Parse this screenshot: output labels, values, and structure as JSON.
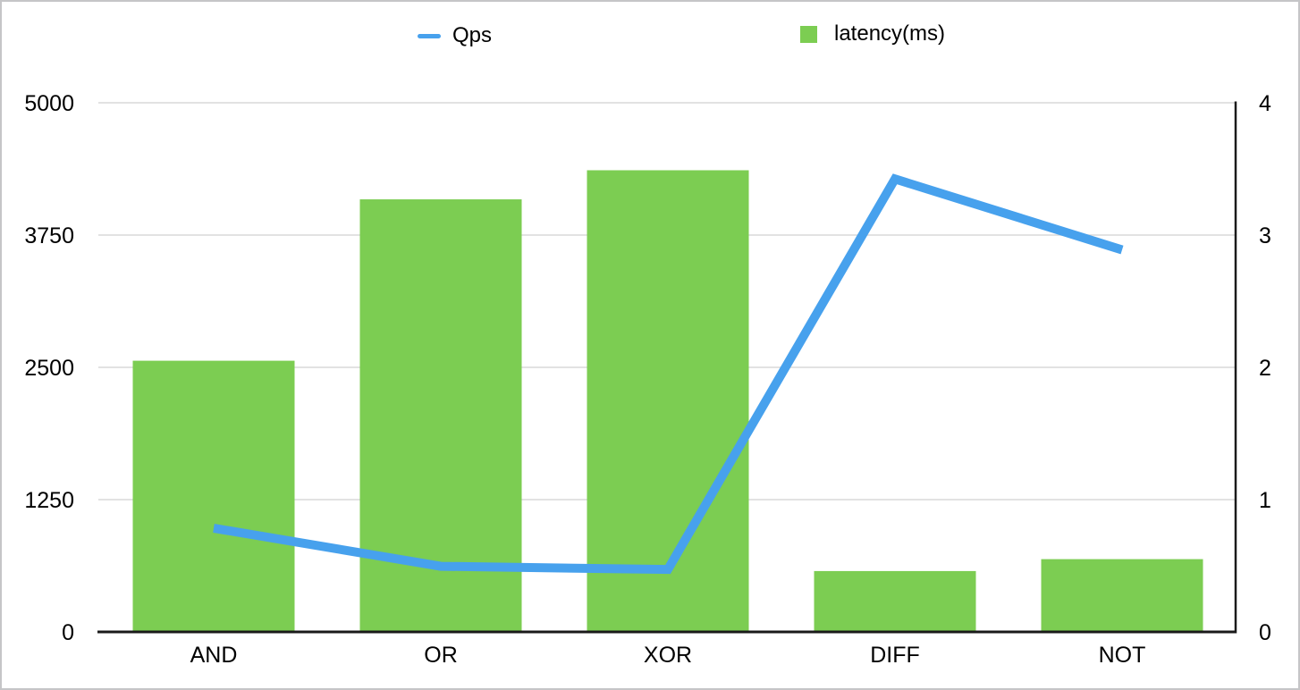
{
  "chart_data": {
    "type": "combo",
    "categories": [
      "AND",
      "OR",
      "XOR",
      "DIFF",
      "NOT"
    ],
    "series": [
      {
        "name": "Qps",
        "type": "line",
        "axis": "left",
        "color": "#47a1ed",
        "values": [
          980,
          620,
          590,
          4280,
          3610
        ]
      },
      {
        "name": "latency(ms)",
        "type": "bar",
        "axis": "right",
        "color": "#7ccd52",
        "values": [
          2.05,
          3.27,
          3.49,
          0.46,
          0.55
        ]
      }
    ],
    "left_axis": {
      "min": 0,
      "max": 5000,
      "ticks": [
        0,
        1250,
        2500,
        3750,
        5000
      ]
    },
    "right_axis": {
      "min": 0,
      "max": 4,
      "ticks": [
        0,
        1,
        2,
        3,
        4
      ]
    },
    "grid": true,
    "legend_position": "top",
    "title": "",
    "xlabel": "",
    "ylabel_left": "",
    "ylabel_right": ""
  },
  "colors": {
    "grid": "#d9d9d9",
    "axis": "#1a1a1a",
    "text": "#000000",
    "background": "#ffffff",
    "frame_border": "#c5c5c7"
  }
}
